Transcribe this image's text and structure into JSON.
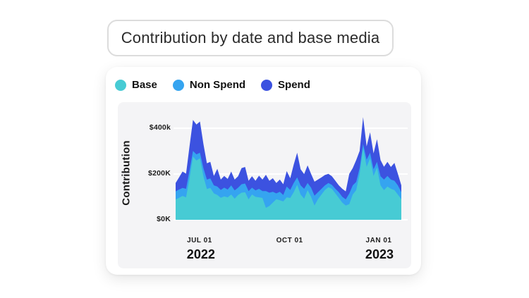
{
  "title_card": {
    "title": "Contribution by date and base media"
  },
  "legend": {
    "items": [
      {
        "label": "Base",
        "color": "#47CBD4"
      },
      {
        "label": "Non Spend",
        "color": "#35A4F0"
      },
      {
        "label": "Spend",
        "color": "#3C52E0"
      }
    ]
  },
  "chart_data": {
    "type": "area",
    "stacked": true,
    "title": "Contribution by date and base media",
    "xlabel": "",
    "ylabel": "Contribution",
    "unit": "$K",
    "ylim": [
      0,
      500
    ],
    "grid": "horizontal-white",
    "legend_position": "top-left",
    "x_range_note": "early JUN 2022 to late JAN 2023, sub-weekly points",
    "y_ticks": [
      {
        "label": "$0K",
        "value": 0
      },
      {
        "label": "$200K",
        "value": 200
      },
      {
        "label": "$400k",
        "value": 400
      }
    ],
    "x_ticks": [
      {
        "label": "JUL 01",
        "pos": 0.106
      },
      {
        "label": "OCT 01",
        "pos": 0.505
      },
      {
        "label": "JAN 01",
        "pos": 0.9
      }
    ],
    "year_labels": [
      {
        "label": "2022",
        "pos": 0.112
      },
      {
        "label": "2023",
        "pos": 0.903
      }
    ],
    "series": [
      {
        "name": "Base",
        "color": "#47CBD4",
        "values": [
          88,
          96,
          104,
          98,
          180,
          275,
          258,
          268,
          190,
          134,
          139,
          115,
          108,
          96,
          102,
          98,
          110,
          92,
          108,
          118,
          120,
          89,
          110,
          100,
          98,
          95,
          52,
          60,
          75,
          90,
          85,
          80,
          98,
          95,
          120,
          152,
          110,
          92,
          129,
          100,
          62,
          90,
          110,
          130,
          142,
          135,
          115,
          95,
          75,
          62,
          68,
          110,
          129,
          200,
          314,
          231,
          268,
          191,
          228,
          150,
          129,
          145,
          135,
          129,
          110,
          89
        ]
      },
      {
        "name": "Non Spend",
        "color": "#35A4F0",
        "values": [
          36,
          36,
          35,
          37,
          35,
          25,
          27,
          24,
          35,
          41,
          41,
          35,
          37,
          34,
          38,
          34,
          40,
          36,
          32,
          37,
          38,
          36,
          30,
          28,
          37,
          30,
          73,
          58,
          47,
          25,
          37,
          28,
          47,
          35,
          40,
          33,
          40,
          43,
          31,
          40,
          43,
          30,
          25,
          20,
          18,
          17,
          20,
          25,
          25,
          27,
          46,
          40,
          36,
          25,
          16,
          31,
          24,
          29,
          24,
          40,
          46,
          46,
          40,
          41,
          40,
          31
        ]
      },
      {
        "name": "Spend",
        "color": "#3C52E0",
        "values": [
          36,
          53,
          71,
          66,
          105,
          135,
          130,
          136,
          105,
          71,
          72,
          41,
          77,
          45,
          51,
          46,
          60,
          47,
          50,
          70,
          72,
          45,
          50,
          42,
          57,
          50,
          71,
          52,
          59,
          45,
          53,
          47,
          67,
          51,
          80,
          107,
          70,
          64,
          77,
          60,
          61,
          55,
          50,
          45,
          40,
          38,
          35,
          30,
          35,
          35,
          86,
          75,
          95,
          75,
          117,
          58,
          89,
          69,
          99,
          70,
          56,
          61,
          55,
          78,
          50,
          30
        ]
      }
    ]
  }
}
